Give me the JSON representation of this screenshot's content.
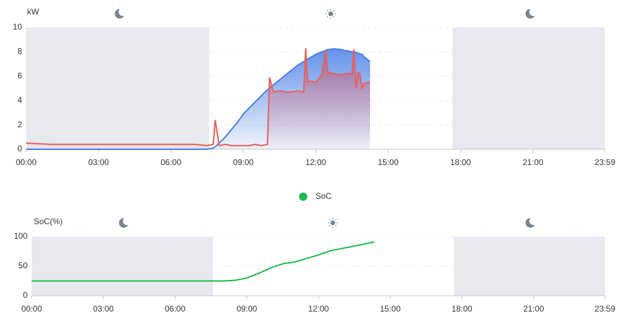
{
  "chart_data": [
    {
      "type": "line",
      "y_label": "kW",
      "x": [
        0,
        60,
        120,
        180,
        240,
        300,
        360,
        420,
        450,
        465,
        470,
        480,
        495,
        510,
        525,
        540,
        555,
        570,
        585,
        600,
        605,
        615,
        630,
        645,
        660,
        675,
        690,
        695,
        700,
        705,
        720,
        735,
        745,
        750,
        755,
        765,
        780,
        795,
        810,
        815,
        820,
        825,
        830,
        835,
        840,
        855
      ],
      "series": [
        {
          "color": "#4a7fe8",
          "area": true,
          "values": [
            0,
            0,
            0,
            0,
            0,
            0,
            0,
            0,
            0,
            0.1,
            0.2,
            0.5,
            1.0,
            1.6,
            2.2,
            2.9,
            3.4,
            3.9,
            4.4,
            4.9,
            5.0,
            5.3,
            5.7,
            6.1,
            6.5,
            6.9,
            7.2,
            7.3,
            7.4,
            7.5,
            7.8,
            8.0,
            8.1,
            8.2,
            8.2,
            8.25,
            8.2,
            8.1,
            8.0,
            8.0,
            7.95,
            7.9,
            7.85,
            7.8,
            7.6,
            7.2
          ]
        },
        {
          "color": "#e8605a",
          "area": true,
          "values": [
            0.5,
            0.4,
            0.4,
            0.4,
            0.4,
            0.4,
            0.4,
            0.4,
            0.3,
            0.4,
            2.4,
            0.3,
            0.4,
            0.3,
            0.3,
            0.3,
            0.3,
            0.4,
            0.3,
            0.4,
            5.9,
            4.7,
            4.8,
            4.7,
            4.7,
            4.8,
            4.7,
            8.3,
            5.5,
            5.6,
            5.5,
            6.1,
            8.2,
            6.2,
            6.3,
            6.2,
            6.1,
            6.2,
            6.2,
            8.2,
            5.0,
            6.3,
            6.2,
            5.0,
            5.4,
            5.5
          ]
        }
      ],
      "xlim": [
        0,
        1439
      ],
      "xticks": [
        {
          "value": 0,
          "label": "00:00"
        },
        {
          "value": 180,
          "label": "03:00"
        },
        {
          "value": 360,
          "label": "06:00"
        },
        {
          "value": 540,
          "label": "09:00"
        },
        {
          "value": 720,
          "label": "12:00"
        },
        {
          "value": 900,
          "label": "15:00"
        },
        {
          "value": 1080,
          "label": "18:00"
        },
        {
          "value": 1260,
          "label": "21:00"
        },
        {
          "value": 1439,
          "label": "23:59"
        }
      ],
      "ylim": [
        0,
        10
      ],
      "yticks": [
        0,
        2,
        4,
        6,
        8,
        10
      ],
      "grid": true,
      "night_ranges": [
        [
          0,
          455
        ],
        [
          1060,
          1439
        ]
      ],
      "night_color": "#e8e9ee"
    },
    {
      "type": "line",
      "y_label": "SoC(%)",
      "x": [
        0,
        460,
        480,
        510,
        540,
        570,
        600,
        630,
        660,
        690,
        720,
        750,
        780,
        810,
        840,
        860
      ],
      "series": [
        {
          "name": "SoC",
          "color": "#1fba4f",
          "area": false,
          "values": [
            25,
            25,
            25,
            26,
            30,
            38,
            47,
            54,
            57,
            63,
            69,
            76,
            80,
            84,
            88,
            91
          ]
        }
      ],
      "xlim": [
        0,
        1439
      ],
      "xticks": [
        {
          "value": 0,
          "label": "00:00"
        },
        {
          "value": 180,
          "label": "03:00"
        },
        {
          "value": 360,
          "label": "06:00"
        },
        {
          "value": 540,
          "label": "09:00"
        },
        {
          "value": 720,
          "label": "12:00"
        },
        {
          "value": 900,
          "label": "15:00"
        },
        {
          "value": 1080,
          "label": "18:00"
        },
        {
          "value": 1260,
          "label": "21:00"
        },
        {
          "value": 1439,
          "label": "23:59"
        }
      ],
      "ylim": [
        0,
        100
      ],
      "yticks": [
        0,
        50,
        100
      ],
      "grid": true,
      "night_ranges": [
        [
          0,
          455
        ],
        [
          1060,
          1439
        ]
      ],
      "night_color": "#e8e9ee"
    }
  ]
}
